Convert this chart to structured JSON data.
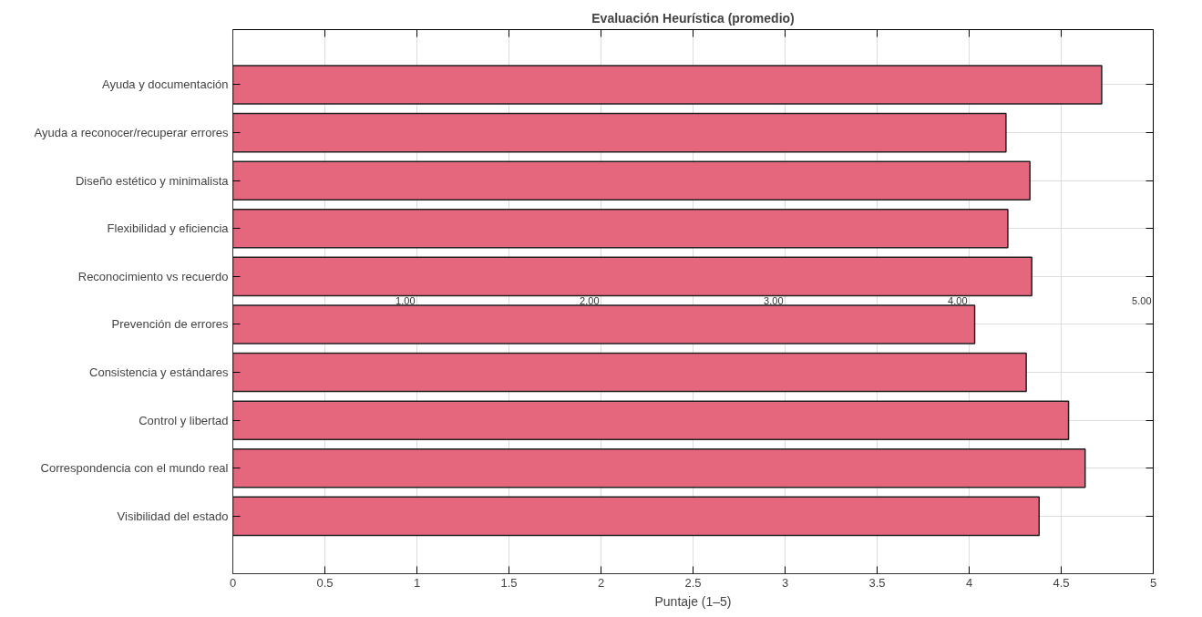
{
  "chart_data": {
    "type": "bar",
    "orientation": "horizontal",
    "title": "Evaluación Heurística (promedio)",
    "xlabel": "Puntaje (1–5)",
    "categories": [
      "Ayuda y documentación",
      "Ayuda a reconocer/recuperar errores",
      "Diseño estético y minimalista",
      "Flexibilidad y eficiencia",
      "Reconocimiento vs recuerdo",
      "Prevención de errores",
      "Consistencia y estándares",
      "Control y libertad",
      "Correspondencia con el mundo real",
      "Visibilidad del estado"
    ],
    "series": [
      {
        "color": "#e4677e",
        "values": [
          4.72,
          4.2,
          4.33,
          4.21,
          4.34,
          4.03,
          4.31,
          4.54,
          4.63,
          4.38
        ]
      }
    ],
    "xlim": [
      0,
      5
    ],
    "xticks": [
      0,
      0.5,
      1,
      1.5,
      2,
      2.5,
      3,
      3.5,
      4,
      4.5,
      5
    ],
    "grid": true,
    "annotations": [
      "1.00",
      "2.00",
      "3.00",
      "4.00",
      "5.00"
    ]
  }
}
